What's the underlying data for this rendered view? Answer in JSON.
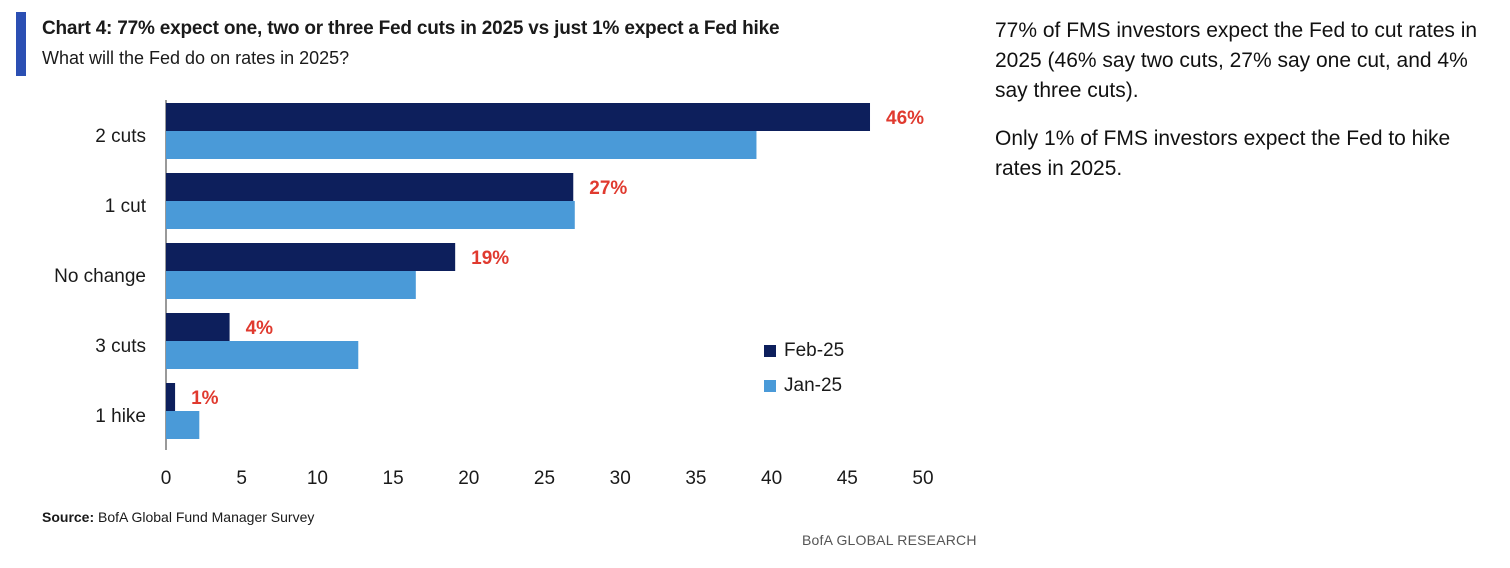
{
  "header": {
    "title": "Chart 4: 77% expect one, two or three Fed cuts in 2025 vs just 1% expect a Fed hike",
    "subtitle": "What will the Fed do on rates in 2025?"
  },
  "source": {
    "label": "Source:",
    "text": "BofA Global Fund Manager Survey"
  },
  "brand": "BofA GLOBAL RESEARCH",
  "commentary": [
    "77% of FMS investors expect the Fed to cut rates in 2025 (46% say two cuts, 27% say one cut, and 4% say three cuts).",
    "Only 1% of FMS investors expect the Fed to hike rates in 2025."
  ],
  "colors": {
    "accent": "#2b4fb3",
    "feb": "#0d1f5c",
    "jan": "#4a9ad8",
    "label_red": "#e03a2f"
  },
  "chart_data": {
    "type": "bar",
    "orientation": "horizontal",
    "categories": [
      "2 cuts",
      "1 cut",
      "No change",
      "3 cuts",
      "1 hike"
    ],
    "series": [
      {
        "name": "Feb-25",
        "color": "#0d1f5c",
        "values": [
          46.5,
          26.9,
          19.1,
          4.2,
          0.6
        ],
        "data_labels": [
          "46%",
          "27%",
          "19%",
          "4%",
          "1%"
        ]
      },
      {
        "name": "Jan-25",
        "color": "#4a9ad8",
        "values": [
          39,
          27,
          16.5,
          12.7,
          2.2
        ]
      }
    ],
    "xlim": [
      0,
      50
    ],
    "xticks": [
      "0",
      "5",
      "10",
      "15",
      "20",
      "25",
      "30",
      "35",
      "40",
      "45",
      "50"
    ],
    "legend_position": "lower-right"
  }
}
